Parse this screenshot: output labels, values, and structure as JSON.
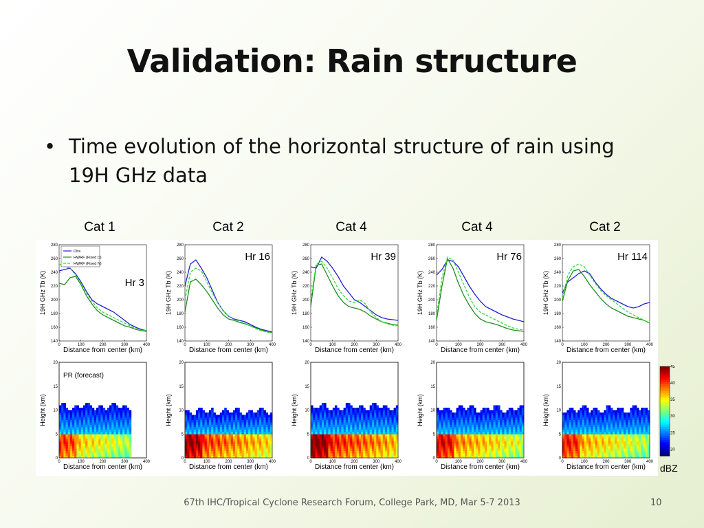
{
  "slide": {
    "title": "Validation: Rain structure",
    "bullet_symbol": "•",
    "bullet": "Time evolution of the horizontal structure of rain using 19H GHz data",
    "footer": "67th IHC/Tropical Cyclone Research Forum, College Park, MD, Mar 5-7 2013",
    "page_number": "10"
  },
  "categories": [
    "Cat 1",
    "Cat 2",
    "Cat 4",
    "Cat 4",
    "Cat 2"
  ],
  "colors": {
    "obs": "#1f1fd0",
    "fixed_d": "#228b22",
    "fixed_n": "#33dd33"
  },
  "chart_data": [
    {
      "type": "line",
      "panel": "brightness-temperature",
      "hours": [
        "Hr 3",
        "Hr 16",
        "Hr 39",
        "Hr 76",
        "Hr 114"
      ],
      "xlabel": "Distance from center (km)",
      "ylabel": "19H GHz Tb (K)",
      "xlim": [
        0,
        400
      ],
      "ylim": [
        140,
        280
      ],
      "xticks": [
        0,
        100,
        200,
        300,
        400
      ],
      "yticks": [
        140,
        160,
        180,
        200,
        220,
        240,
        260,
        280
      ],
      "legend": [
        "Obs",
        "HWRF (Fixed D)",
        "HWRF (Fixed N)"
      ],
      "legend_position": "top-left (first panel)",
      "x": [
        0,
        25,
        50,
        75,
        100,
        125,
        150,
        175,
        200,
        225,
        250,
        275,
        300,
        325,
        350,
        375,
        400
      ],
      "panels": [
        {
          "hour": "Hr 3",
          "series": [
            {
              "name": "Obs",
              "values": [
                242,
                244,
                246,
                238,
                226,
                212,
                200,
                194,
                190,
                186,
                182,
                176,
                170,
                164,
                160,
                157,
                155
              ]
            },
            {
              "name": "HWRF (Fixed D)",
              "values": [
                224,
                222,
                232,
                234,
                222,
                206,
                194,
                184,
                178,
                174,
                170,
                166,
                162,
                160,
                157,
                155,
                154
              ]
            },
            {
              "name": "HWRF (Fixed N)",
              "values": [
                252,
                248,
                246,
                236,
                224,
                210,
                198,
                188,
                182,
                178,
                174,
                170,
                166,
                162,
                158,
                156,
                155
              ]
            }
          ]
        },
        {
          "hour": "Hr 16",
          "series": [
            {
              "name": "Obs",
              "values": [
                220,
                252,
                258,
                246,
                232,
                214,
                196,
                184,
                176,
                172,
                170,
                168,
                164,
                160,
                157,
                155,
                153
              ]
            },
            {
              "name": "HWRF (Fixed D)",
              "values": [
                182,
                226,
                230,
                222,
                212,
                200,
                188,
                178,
                172,
                170,
                167,
                165,
                162,
                159,
                156,
                154,
                152
              ]
            },
            {
              "name": "HWRF (Fixed N)",
              "values": [
                200,
                240,
                246,
                242,
                226,
                210,
                196,
                184,
                176,
                171,
                168,
                166,
                162,
                158,
                155,
                153,
                152
              ]
            }
          ]
        },
        {
          "hour": "Hr 39",
          "series": [
            {
              "name": "Obs",
              "values": [
                248,
                246,
                262,
                256,
                246,
                234,
                220,
                210,
                200,
                196,
                190,
                184,
                178,
                174,
                172,
                171,
                170
              ]
            },
            {
              "name": "HWRF (Fixed D)",
              "values": [
                190,
                250,
                252,
                236,
                220,
                206,
                196,
                190,
                188,
                186,
                182,
                176,
                172,
                168,
                166,
                164,
                163
              ]
            },
            {
              "name": "HWRF (Fixed N)",
              "values": [
                200,
                252,
                256,
                246,
                232,
                216,
                206,
                198,
                196,
                200,
                194,
                182,
                174,
                168,
                165,
                163,
                162
              ]
            }
          ]
        },
        {
          "hour": "Hr 76",
          "series": [
            {
              "name": "Obs",
              "values": [
                236,
                244,
                258,
                256,
                248,
                234,
                220,
                208,
                198,
                190,
                186,
                182,
                178,
                175,
                172,
                170,
                168
              ]
            },
            {
              "name": "HWRF (Fixed D)",
              "values": [
                170,
                220,
                260,
                246,
                224,
                206,
                192,
                180,
                172,
                168,
                166,
                164,
                161,
                158,
                156,
                155,
                154
              ]
            },
            {
              "name": "HWRF (Fixed N)",
              "values": [
                176,
                232,
                262,
                258,
                240,
                222,
                204,
                190,
                182,
                178,
                174,
                170,
                166,
                162,
                159,
                157,
                156
              ]
            }
          ]
        },
        {
          "hour": "Hr 114",
          "series": [
            {
              "name": "Obs",
              "values": [
                210,
                226,
                232,
                238,
                242,
                238,
                226,
                216,
                208,
                202,
                198,
                194,
                190,
                188,
                190,
                194,
                196
              ]
            },
            {
              "name": "HWRF (Fixed D)",
              "values": [
                198,
                228,
                242,
                244,
                234,
                222,
                212,
                202,
                194,
                188,
                184,
                180,
                176,
                174,
                172,
                170,
                166
              ]
            },
            {
              "name": "HWRF (Fixed N)",
              "values": [
                202,
                236,
                248,
                252,
                248,
                236,
                224,
                214,
                206,
                200,
                194,
                188,
                182,
                178,
                174,
                170,
                166
              ]
            }
          ]
        }
      ]
    },
    {
      "type": "heatmap",
      "panel": "reflectivity-cross-section",
      "label": "PR (forecast)",
      "xlabel": "Distance from center (km)",
      "ylabel": "Height (km)",
      "xlim": [
        0,
        400
      ],
      "ylim": [
        0,
        20
      ],
      "xticks": [
        0,
        100,
        200,
        300,
        400
      ],
      "yticks": [
        0,
        5,
        10,
        15,
        20
      ],
      "colorbar_label": "dBZ",
      "colorbar_ticks": [
        20,
        25,
        30,
        35,
        40,
        45
      ],
      "colorbar_range": [
        18,
        45
      ],
      "panels": [
        {
          "rain_top_km": 10.5,
          "rain_extent_km": 330,
          "bright_band_km": 4.5,
          "core_dbz": 38
        },
        {
          "rain_top_km": 9.5,
          "rain_extent_km": 400,
          "bright_band_km": 4.5,
          "core_dbz": 42
        },
        {
          "rain_top_km": 10.5,
          "rain_extent_km": 400,
          "bright_band_km": 4.5,
          "core_dbz": 43
        },
        {
          "rain_top_km": 10.0,
          "rain_extent_km": 400,
          "bright_band_km": 4.5,
          "core_dbz": 40
        },
        {
          "rain_top_km": 10.0,
          "rain_extent_km": 400,
          "bright_band_km": 4.5,
          "core_dbz": 39
        }
      ]
    }
  ]
}
